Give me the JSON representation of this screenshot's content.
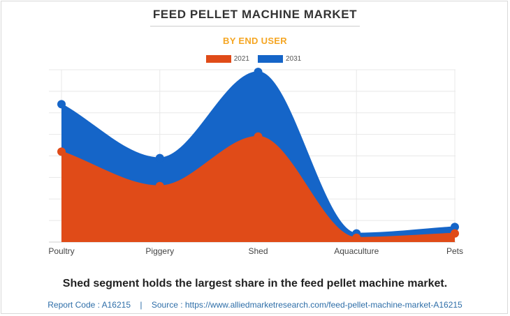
{
  "header": {
    "title": "FEED PELLET MACHINE MARKET",
    "subtitle": "BY END USER"
  },
  "chart_data": {
    "type": "area",
    "categories": [
      "Poultry",
      "Piggery",
      "Shed",
      "Aquaculture",
      "Pets"
    ],
    "series": [
      {
        "name": "2021",
        "color": "#e04b18",
        "values": [
          42,
          26,
          49,
          2,
          4
        ]
      },
      {
        "name": "2031",
        "color": "#1565c8",
        "values": [
          64,
          39,
          79,
          4,
          7
        ]
      }
    ],
    "ylim": [
      0,
      80
    ],
    "y_ticks_visible": false,
    "grid": true,
    "legend_position": "top-center",
    "smooth": true
  },
  "caption": "Shed segment holds the largest share in the feed pellet machine market.",
  "footer": {
    "report_code": "Report Code : A16215",
    "separator": "|",
    "source": "Source : https://www.alliedmarketresearch.com/feed-pellet-machine-market-A16215"
  }
}
